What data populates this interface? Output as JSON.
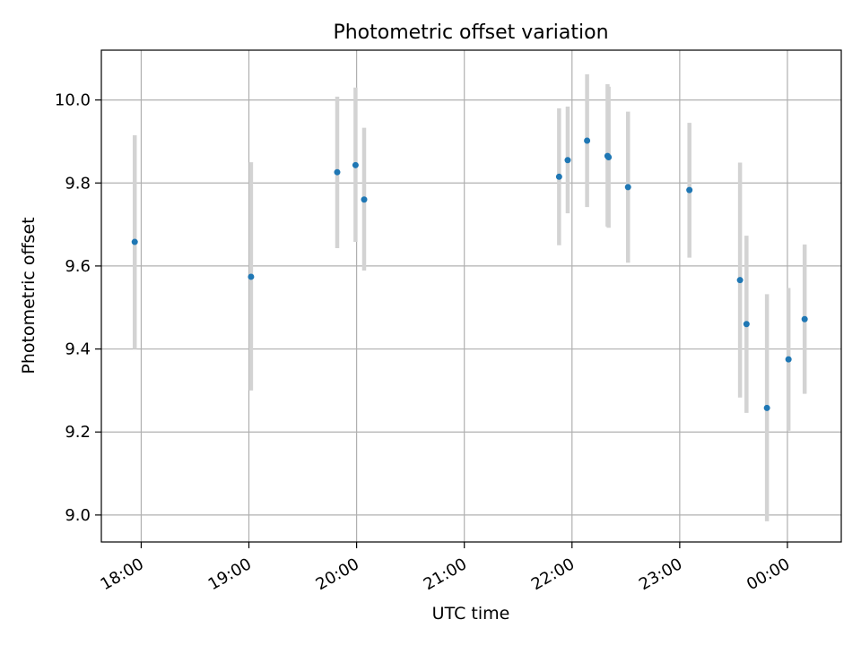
{
  "chart_data": {
    "type": "scatter",
    "title": "Photometric offset variation",
    "xlabel": "UTC time",
    "ylabel": "Photometric offset",
    "x_unit": "UTC hours (24h clock, 24 = 00:00 next day)",
    "xlim": [
      17.63,
      24.5
    ],
    "ylim": [
      8.935,
      10.12
    ],
    "x_ticks": [
      {
        "value": 18,
        "label": "18:00"
      },
      {
        "value": 19,
        "label": "19:00"
      },
      {
        "value": 20,
        "label": "20:00"
      },
      {
        "value": 21,
        "label": "21:00"
      },
      {
        "value": 22,
        "label": "22:00"
      },
      {
        "value": 23,
        "label": "23:00"
      },
      {
        "value": 24,
        "label": "00:00"
      }
    ],
    "y_ticks": [
      {
        "value": 9.0,
        "label": "9.0"
      },
      {
        "value": 9.2,
        "label": "9.2"
      },
      {
        "value": 9.4,
        "label": "9.4"
      },
      {
        "value": 9.6,
        "label": "9.6"
      },
      {
        "value": 9.8,
        "label": "9.8"
      },
      {
        "value": 10.0,
        "label": "10.0"
      }
    ],
    "grid": true,
    "point_color": "#1f77b4",
    "errorbar_color": "#d3d3d3",
    "points": [
      {
        "x": 17.94,
        "y": 9.658,
        "ylow": 9.4,
        "yhigh": 9.915
      },
      {
        "x": 19.02,
        "y": 9.574,
        "ylow": 9.3,
        "yhigh": 9.85
      },
      {
        "x": 19.82,
        "y": 9.826,
        "ylow": 9.643,
        "yhigh": 10.008
      },
      {
        "x": 19.99,
        "y": 9.843,
        "ylow": 9.658,
        "yhigh": 10.03
      },
      {
        "x": 20.07,
        "y": 9.76,
        "ylow": 9.589,
        "yhigh": 9.933
      },
      {
        "x": 21.88,
        "y": 9.815,
        "ylow": 9.65,
        "yhigh": 9.98
      },
      {
        "x": 21.96,
        "y": 9.855,
        "ylow": 9.727,
        "yhigh": 9.984
      },
      {
        "x": 22.14,
        "y": 9.902,
        "ylow": 9.742,
        "yhigh": 10.062
      },
      {
        "x": 22.33,
        "y": 9.865,
        "ylow": 9.695,
        "yhigh": 10.038
      },
      {
        "x": 22.34,
        "y": 9.862,
        "ylow": 9.692,
        "yhigh": 10.032
      },
      {
        "x": 22.52,
        "y": 9.79,
        "ylow": 9.608,
        "yhigh": 9.972
      },
      {
        "x": 23.09,
        "y": 9.783,
        "ylow": 9.62,
        "yhigh": 9.945
      },
      {
        "x": 23.56,
        "y": 9.566,
        "ylow": 9.283,
        "yhigh": 9.849
      },
      {
        "x": 23.62,
        "y": 9.46,
        "ylow": 9.246,
        "yhigh": 9.673
      },
      {
        "x": 23.81,
        "y": 9.258,
        "ylow": 8.985,
        "yhigh": 9.532
      },
      {
        "x": 24.01,
        "y": 9.375,
        "ylow": 9.203,
        "yhigh": 9.547
      },
      {
        "x": 24.16,
        "y": 9.472,
        "ylow": 9.292,
        "yhigh": 9.652
      }
    ]
  }
}
